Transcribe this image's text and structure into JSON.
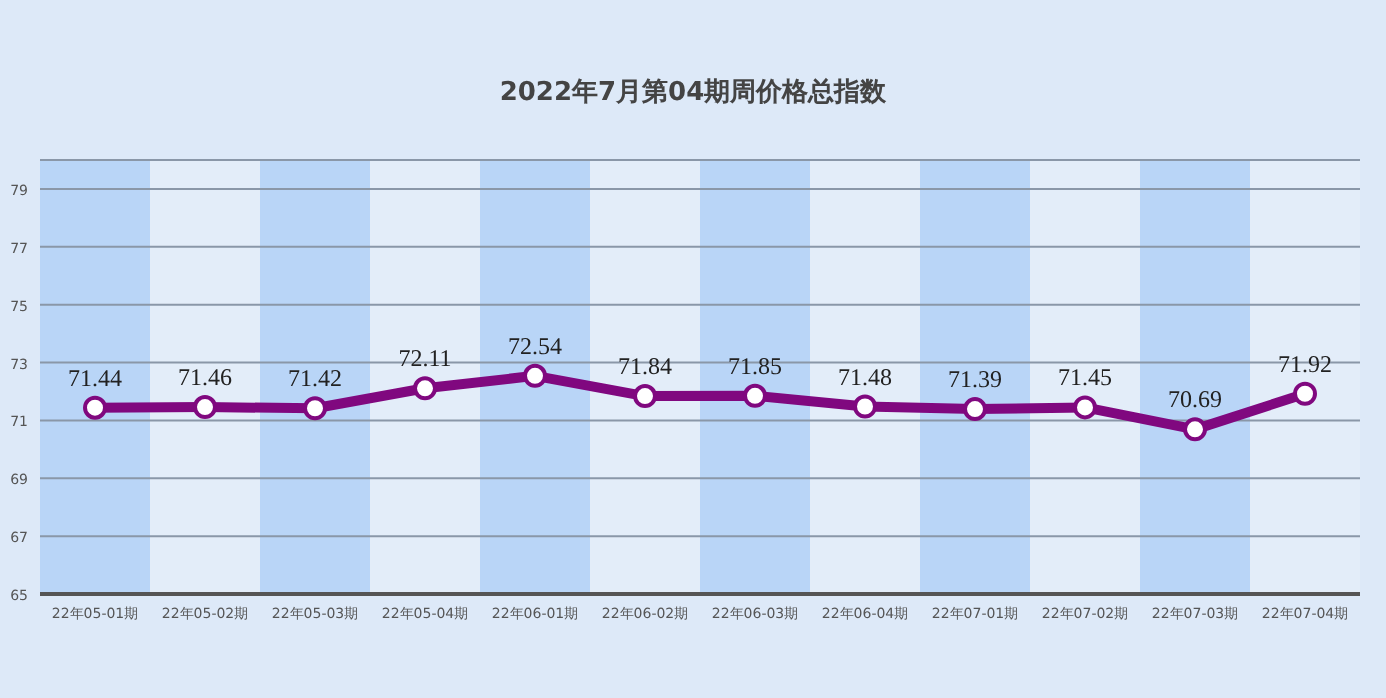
{
  "chart_data": {
    "type": "line",
    "title": "2022年7月第04期周价格总指数",
    "categories": [
      "22年05-01期",
      "22年05-02期",
      "22年05-03期",
      "22年05-04期",
      "22年06-01期",
      "22年06-02期",
      "22年06-03期",
      "22年06-04期",
      "22年07-01期",
      "22年07-02期",
      "22年07-03期",
      "22年07-04期"
    ],
    "series": [
      {
        "color": "#80087f",
        "values": [
          71.44,
          71.46,
          71.42,
          72.11,
          72.54,
          71.84,
          71.85,
          71.48,
          71.39,
          71.45,
          70.69,
          71.92
        ]
      }
    ],
    "ylim": [
      65,
      80
    ],
    "yticks": [
      65,
      67,
      69,
      71,
      73,
      75,
      77,
      79
    ],
    "grid": "y",
    "marker": "circle",
    "line_style": "solid",
    "data_labels": true
  }
}
